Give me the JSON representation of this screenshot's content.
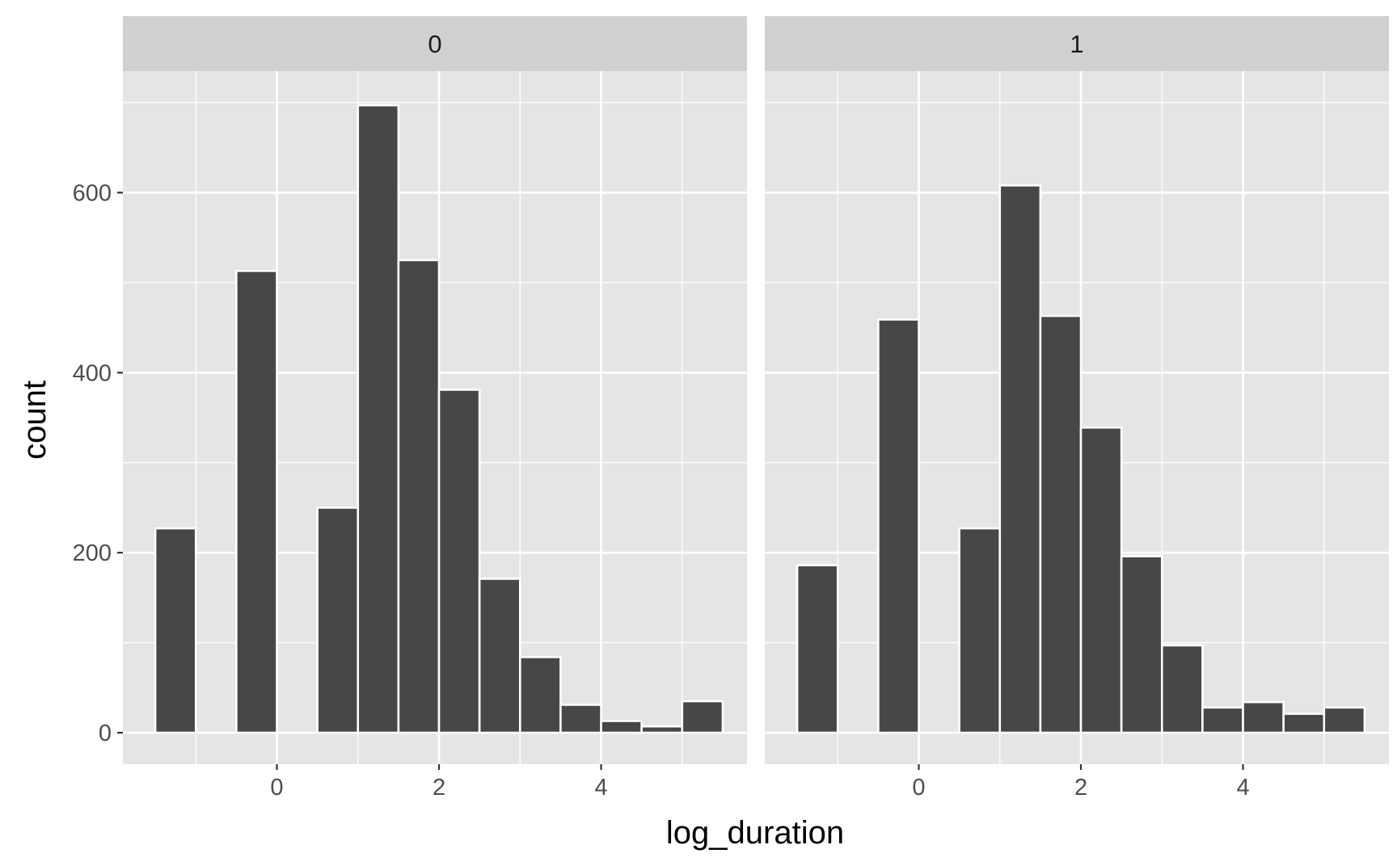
{
  "chart_data": {
    "type": "bar",
    "xlabel": "log_duration",
    "ylabel": "count",
    "binwidth": 0.5,
    "x_range": [
      -1.9,
      5.8
    ],
    "y_range": [
      -35,
      735
    ],
    "xticks": [
      0,
      2,
      4
    ],
    "yticks": [
      0,
      200,
      400,
      600
    ],
    "colors": {
      "panel_bg": "#e5e5e5",
      "strip_bg": "#d0d0d0",
      "grid": "#ffffff",
      "bar_fill": "#474747",
      "bar_outline": "#ffffff",
      "text": "#4d4d4d",
      "title_text": "#000000"
    },
    "panels": [
      {
        "label": "0",
        "bins": [
          {
            "x": -1.25,
            "count": 227
          },
          {
            "x": -0.25,
            "count": 513
          },
          {
            "x": 0.75,
            "count": 250
          },
          {
            "x": 1.25,
            "count": 697
          },
          {
            "x": 1.75,
            "count": 525
          },
          {
            "x": 2.25,
            "count": 381
          },
          {
            "x": 2.75,
            "count": 171
          },
          {
            "x": 3.25,
            "count": 84
          },
          {
            "x": 3.75,
            "count": 31
          },
          {
            "x": 4.25,
            "count": 13
          },
          {
            "x": 4.75,
            "count": 7
          },
          {
            "x": 5.25,
            "count": 35
          }
        ]
      },
      {
        "label": "1",
        "bins": [
          {
            "x": -1.25,
            "count": 186
          },
          {
            "x": -0.25,
            "count": 459
          },
          {
            "x": 0.75,
            "count": 227
          },
          {
            "x": 1.25,
            "count": 608
          },
          {
            "x": 1.75,
            "count": 463
          },
          {
            "x": 2.25,
            "count": 339
          },
          {
            "x": 2.75,
            "count": 196
          },
          {
            "x": 3.25,
            "count": 97
          },
          {
            "x": 3.75,
            "count": 28
          },
          {
            "x": 4.25,
            "count": 34
          },
          {
            "x": 4.75,
            "count": 21
          },
          {
            "x": 5.25,
            "count": 28
          }
        ]
      }
    ]
  }
}
